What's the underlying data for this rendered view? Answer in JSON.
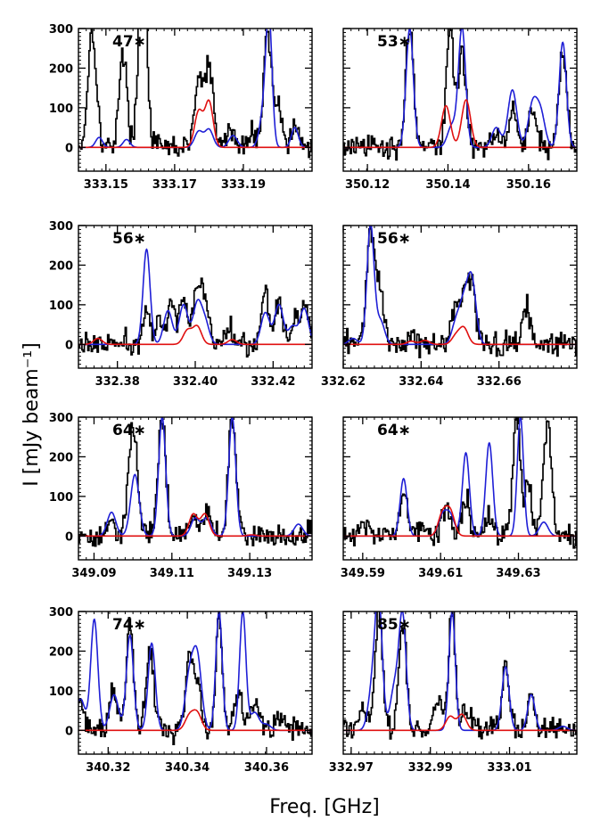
{
  "figure": {
    "ylabel": "I [mJy beam⁻¹]",
    "xlabel": "Freq. [GHz]"
  },
  "colors": {
    "observed": "#000000",
    "model_total": "#1f1fd6",
    "model_species": "#e01010"
  },
  "chart_data": [
    {
      "type": "line",
      "label": "47∗",
      "xlim": [
        333.142,
        333.21
      ],
      "ylim": [
        -60,
        300
      ],
      "xticks": [
        333.15,
        333.17,
        333.19
      ],
      "yticks": [
        0,
        100,
        200,
        300
      ],
      "xtick_labels": [
        "333.15",
        "333.17",
        "333.19"
      ],
      "ytick_labels": [
        "0",
        "100",
        "200",
        "300"
      ],
      "blue_peaks": [
        [
          333.177,
          40,
          0.0012
        ],
        [
          333.18,
          45,
          0.0012
        ],
        [
          333.187,
          30,
          0.0012
        ],
        [
          333.196,
          90,
          0.0012
        ],
        [
          333.1975,
          300,
          0.0009
        ],
        [
          333.205,
          50,
          0.001
        ],
        [
          333.148,
          25,
          0.001
        ],
        [
          333.156,
          20,
          0.001
        ]
      ],
      "red_peaks": [
        [
          333.177,
          90,
          0.0012
        ],
        [
          333.18,
          115,
          0.0012
        ]
      ],
      "black_peaks": [
        [
          333.146,
          300,
          0.0012
        ],
        [
          333.155,
          230,
          0.0012
        ],
        [
          333.1605,
          300,
          0.001
        ],
        [
          333.161,
          240,
          0.0012
        ],
        [
          333.177,
          165,
          0.0012
        ],
        [
          333.18,
          200,
          0.0012
        ],
        [
          333.186,
          45,
          0.0012
        ],
        [
          333.193,
          45,
          0.0012
        ],
        [
          333.197,
          300,
          0.001
        ],
        [
          333.2,
          120,
          0.0012
        ],
        [
          333.205,
          45,
          0.001
        ]
      ]
    },
    {
      "type": "line",
      "label": "53∗",
      "xlim": [
        350.114,
        350.172
      ],
      "ylim": [
        -60,
        300
      ],
      "xticks": [
        350.12,
        350.14,
        350.16
      ],
      "yticks": [
        0,
        100,
        200,
        300
      ],
      "xtick_labels": [
        "350.12",
        "350.14",
        "350.16"
      ],
      "ytick_labels": [],
      "blue_peaks": [
        [
          350.1305,
          300,
          0.0009
        ],
        [
          350.141,
          55,
          0.0011
        ],
        [
          350.1435,
          300,
          0.0009
        ],
        [
          350.152,
          50,
          0.0011
        ],
        [
          350.156,
          145,
          0.0011
        ],
        [
          350.161,
          105,
          0.0011
        ],
        [
          350.163,
          85,
          0.0011
        ],
        [
          350.1685,
          265,
          0.0009
        ]
      ],
      "red_peaks": [
        [
          350.1395,
          105,
          0.0011
        ],
        [
          350.1445,
          120,
          0.0011
        ]
      ],
      "black_peaks": [
        [
          350.1305,
          300,
          0.001
        ],
        [
          350.1405,
          300,
          0.0009
        ],
        [
          350.1435,
          230,
          0.001
        ],
        [
          350.152,
          45,
          0.001
        ],
        [
          350.156,
          100,
          0.001
        ],
        [
          350.161,
          100,
          0.001
        ],
        [
          350.1685,
          230,
          0.001
        ]
      ]
    },
    {
      "type": "line",
      "label": "56∗",
      "xlim": [
        332.37,
        332.43
      ],
      "ylim": [
        -60,
        300
      ],
      "xticks": [
        332.38,
        332.4,
        332.42
      ],
      "yticks": [
        0,
        100,
        200,
        300
      ],
      "xtick_labels": [
        "332.38",
        "332.40",
        "332.42"
      ],
      "ytick_labels": [
        "0",
        "100",
        "200",
        "300"
      ],
      "blue_peaks": [
        [
          332.3875,
          240,
          0.0009
        ],
        [
          332.393,
          85,
          0.0011
        ],
        [
          332.397,
          100,
          0.0011
        ],
        [
          332.4005,
          100,
          0.0011
        ],
        [
          332.4025,
          55,
          0.0011
        ],
        [
          332.418,
          80,
          0.0011
        ],
        [
          332.4215,
          100,
          0.0011
        ],
        [
          332.425,
          45,
          0.0011
        ],
        [
          332.428,
          90,
          0.0011
        ]
      ],
      "red_peaks": [
        [
          332.398,
          35,
          0.0011
        ],
        [
          332.4005,
          45,
          0.0011
        ],
        [
          332.4095,
          12,
          0.0011
        ],
        [
          332.375,
          15,
          0.0011
        ]
      ],
      "black_peaks": [
        [
          332.3875,
          80,
          0.001
        ],
        [
          332.391,
          50,
          0.001
        ],
        [
          332.394,
          95,
          0.001
        ],
        [
          332.397,
          130,
          0.001
        ],
        [
          332.4005,
          140,
          0.001
        ],
        [
          332.4025,
          100,
          0.001
        ],
        [
          332.409,
          50,
          0.001
        ],
        [
          332.418,
          135,
          0.001
        ],
        [
          332.4215,
          110,
          0.001
        ],
        [
          332.4255,
          60,
          0.001
        ],
        [
          332.428,
          105,
          0.001
        ]
      ]
    },
    {
      "type": "line",
      "label": "56∗",
      "xlim": [
        332.62,
        332.68
      ],
      "ylim": [
        -60,
        300
      ],
      "xticks": [
        332.62,
        332.64,
        332.66
      ],
      "yticks": [
        0,
        100,
        200,
        300
      ],
      "xtick_labels": [
        "332.62",
        "332.64",
        "332.66"
      ],
      "ytick_labels": [],
      "blue_peaks": [
        [
          332.627,
          300,
          0.0009
        ],
        [
          332.6295,
          60,
          0.0011
        ],
        [
          332.649,
          55,
          0.0011
        ],
        [
          332.651,
          95,
          0.0011
        ],
        [
          332.653,
          160,
          0.0011
        ],
        [
          332.6225,
          15,
          0.0011
        ]
      ],
      "red_peaks": [
        [
          332.649,
          22,
          0.0011
        ],
        [
          332.651,
          40,
          0.0011
        ],
        [
          332.6375,
          8,
          0.0011
        ],
        [
          332.641,
          10,
          0.0011
        ]
      ],
      "black_peaks": [
        [
          332.627,
          290,
          0.001
        ],
        [
          332.6295,
          130,
          0.001
        ],
        [
          332.6485,
          85,
          0.001
        ],
        [
          332.651,
          120,
          0.001
        ],
        [
          332.653,
          150,
          0.001
        ],
        [
          332.667,
          90,
          0.001
        ],
        [
          332.638,
          25,
          0.001
        ]
      ]
    },
    {
      "type": "line",
      "label": "64∗",
      "xlim": [
        349.086,
        349.146
      ],
      "ylim": [
        -60,
        300
      ],
      "xticks": [
        349.09,
        349.11,
        349.13
      ],
      "yticks": [
        0,
        100,
        200,
        300
      ],
      "xtick_labels": [
        "349.09",
        "349.11",
        "349.13"
      ],
      "ytick_labels": [
        "0",
        "100",
        "200",
        "300"
      ],
      "blue_peaks": [
        [
          349.0945,
          60,
          0.0011
        ],
        [
          349.1005,
          155,
          0.0011
        ],
        [
          349.1075,
          300,
          0.0009
        ],
        [
          349.116,
          45,
          0.0011
        ],
        [
          349.119,
          45,
          0.0011
        ],
        [
          349.1255,
          300,
          0.0009
        ],
        [
          349.1425,
          30,
          0.0011
        ]
      ],
      "red_peaks": [
        [
          349.1155,
          55,
          0.0011
        ],
        [
          349.1185,
          55,
          0.0011
        ],
        [
          349.1305,
          3,
          0.0011
        ]
      ],
      "black_peaks": [
        [
          349.1,
          280,
          0.0012
        ],
        [
          349.1075,
          300,
          0.001
        ],
        [
          349.1155,
          60,
          0.001
        ],
        [
          349.119,
          70,
          0.001
        ],
        [
          349.1255,
          300,
          0.001
        ],
        [
          349.0945,
          45,
          0.001
        ]
      ]
    },
    {
      "type": "line",
      "label": "64∗",
      "xlim": [
        349.585,
        349.645
      ],
      "ylim": [
        -60,
        300
      ],
      "xticks": [
        349.59,
        349.61,
        349.63
      ],
      "yticks": [
        0,
        100,
        200,
        300
      ],
      "xtick_labels": [
        "349.59",
        "349.61",
        "349.63"
      ],
      "ytick_labels": [],
      "blue_peaks": [
        [
          349.6005,
          145,
          0.0009
        ],
        [
          349.6105,
          50,
          0.0011
        ],
        [
          349.6125,
          50,
          0.0011
        ],
        [
          349.6165,
          210,
          0.0009
        ],
        [
          349.6225,
          235,
          0.0009
        ],
        [
          349.6305,
          300,
          0.0008
        ],
        [
          349.6365,
          35,
          0.0011
        ]
      ],
      "red_peaks": [
        [
          349.6105,
          55,
          0.0011
        ],
        [
          349.6125,
          60,
          0.0011
        ]
      ],
      "black_peaks": [
        [
          349.6005,
          110,
          0.001
        ],
        [
          349.6115,
          80,
          0.001
        ],
        [
          349.6165,
          95,
          0.001
        ],
        [
          349.6225,
          45,
          0.001
        ],
        [
          349.6295,
          300,
          0.0009
        ],
        [
          349.6325,
          120,
          0.001
        ],
        [
          349.6375,
          300,
          0.001
        ],
        [
          349.59,
          30,
          0.001
        ],
        [
          349.605,
          25,
          0.001
        ]
      ]
    },
    {
      "type": "line",
      "label": "74∗",
      "xlim": [
        340.3125,
        340.3715
      ],
      "ylim": [
        -60,
        300
      ],
      "xticks": [
        340.32,
        340.34,
        340.36
      ],
      "yticks": [
        0,
        100,
        200,
        300
      ],
      "xtick_labels": [
        "340.32",
        "340.34",
        "340.36"
      ],
      "ytick_labels": [
        "0",
        "100",
        "200",
        "300"
      ],
      "blue_peaks": [
        [
          340.313,
          80,
          0.0011
        ],
        [
          340.3165,
          280,
          0.0009
        ],
        [
          340.3215,
          90,
          0.0011
        ],
        [
          340.3255,
          240,
          0.0009
        ],
        [
          340.331,
          220,
          0.0009
        ],
        [
          340.3405,
          130,
          0.0011
        ],
        [
          340.3425,
          180,
          0.0011
        ],
        [
          340.348,
          300,
          0.0008
        ],
        [
          340.354,
          300,
          0.0008
        ],
        [
          340.357,
          45,
          0.0011
        ],
        [
          340.36,
          15,
          0.0011
        ]
      ],
      "red_peaks": [
        [
          340.3405,
          35,
          0.0011
        ],
        [
          340.3425,
          42,
          0.0011
        ]
      ],
      "black_peaks": [
        [
          340.313,
          70,
          0.001
        ],
        [
          340.3215,
          95,
          0.001
        ],
        [
          340.3255,
          270,
          0.0009
        ],
        [
          340.3305,
          200,
          0.001
        ],
        [
          340.3405,
          165,
          0.001
        ],
        [
          340.3425,
          120,
          0.001
        ],
        [
          340.348,
          300,
          0.0008
        ],
        [
          340.353,
          110,
          0.001
        ],
        [
          340.357,
          85,
          0.001
        ],
        [
          340.3635,
          40,
          0.001
        ]
      ]
    },
    {
      "type": "line",
      "label": "85∗",
      "xlim": [
        332.968,
        333.027
      ],
      "ylim": [
        -60,
        300
      ],
      "xticks": [
        332.97,
        332.99,
        333.01
      ],
      "yticks": [
        0,
        100,
        200,
        300
      ],
      "xtick_labels": [
        "332.97",
        "332.99",
        "333.01"
      ],
      "ytick_labels": [],
      "blue_peaks": [
        [
          332.9755,
          115,
          0.0011
        ],
        [
          332.977,
          300,
          0.0009
        ],
        [
          332.981,
          110,
          0.0011
        ],
        [
          332.983,
          280,
          0.0009
        ],
        [
          332.9955,
          300,
          0.0008
        ],
        [
          333.009,
          160,
          0.0009
        ],
        [
          333.0155,
          90,
          0.0009
        ],
        [
          333.0235,
          10,
          0.0011
        ]
      ],
      "red_peaks": [
        [
          332.995,
          35,
          0.0011
        ],
        [
          332.998,
          40,
          0.0011
        ]
      ],
      "black_peaks": [
        [
          332.977,
          300,
          0.0009
        ],
        [
          332.983,
          275,
          0.0009
        ],
        [
          332.992,
          80,
          0.001
        ],
        [
          332.9955,
          300,
          0.0008
        ],
        [
          332.999,
          55,
          0.001
        ],
        [
          333.009,
          160,
          0.0009
        ],
        [
          333.0155,
          80,
          0.0009
        ],
        [
          332.973,
          50,
          0.001
        ]
      ]
    }
  ]
}
